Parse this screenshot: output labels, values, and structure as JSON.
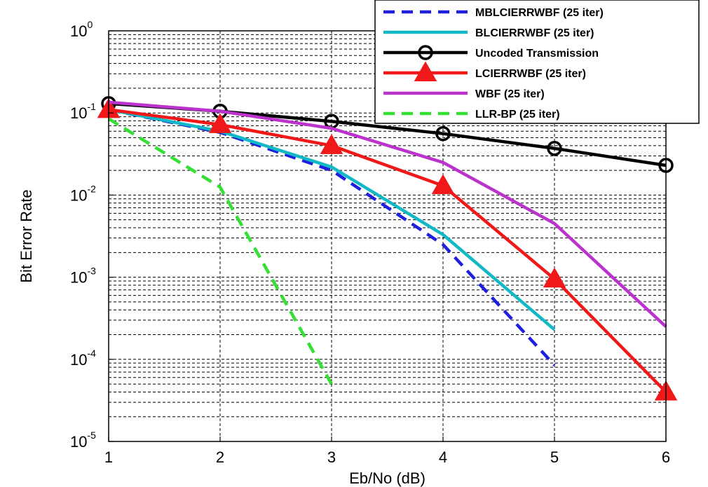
{
  "chart_data": {
    "type": "line",
    "title": "",
    "xlabel": "Eb/No (dB)",
    "ylabel": "Bit Error Rate",
    "x_scale": "linear",
    "y_scale": "log",
    "xlim": [
      1,
      6
    ],
    "ylim_exponents": [
      -5,
      0
    ],
    "x_ticks": [
      "1",
      "2",
      "3",
      "4",
      "5",
      "6"
    ],
    "y_ticks": [
      {
        "base": "10",
        "exp": "0",
        "value": 1
      },
      {
        "base": "10",
        "exp": "-1",
        "value": 0.1
      },
      {
        "base": "10",
        "exp": "-2",
        "value": 0.01
      },
      {
        "base": "10",
        "exp": "-3",
        "value": 0.001
      },
      {
        "base": "10",
        "exp": "-4",
        "value": 0.0001
      },
      {
        "base": "10",
        "exp": "-5",
        "value": 1e-05
      }
    ],
    "grid": true,
    "legend_position": "top-right",
    "series": [
      {
        "name": "MBLCIERRWBF (25 iter)",
        "color": "#1f1fe0",
        "dash": "dashed",
        "marker": "none",
        "x": [
          1,
          2,
          3,
          4,
          5
        ],
        "y": [
          0.11,
          0.058,
          0.02,
          0.0025,
          8.5e-05
        ]
      },
      {
        "name": "BLCIERRWBF (25 iter)",
        "color": "#11b9c6",
        "dash": "solid",
        "marker": "none",
        "x": [
          1,
          2,
          3,
          4,
          5
        ],
        "y": [
          0.11,
          0.06,
          0.022,
          0.0033,
          0.00023
        ]
      },
      {
        "name": "Uncoded Transmission",
        "color": "#000000",
        "dash": "solid",
        "marker": "circle",
        "x": [
          1,
          2,
          3,
          4,
          5,
          6
        ],
        "y": [
          0.13,
          0.105,
          0.079,
          0.056,
          0.037,
          0.023
        ]
      },
      {
        "name": "LCIERRWBF (25 iter)",
        "color": "#f01818",
        "dash": "solid",
        "marker": "triangle",
        "x": [
          1,
          2,
          3,
          4,
          5,
          6
        ],
        "y": [
          0.11,
          0.072,
          0.04,
          0.013,
          0.00095,
          4e-05
        ]
      },
      {
        "name": "WBF (25 iter)",
        "color": "#bb33cc",
        "dash": "solid",
        "marker": "none",
        "x": [
          1,
          2,
          3,
          4,
          5,
          6
        ],
        "y": [
          0.135,
          0.105,
          0.065,
          0.025,
          0.0045,
          0.00025
        ]
      },
      {
        "name": "LLR-BP (25 iter)",
        "color": "#33e033",
        "dash": "dashed",
        "marker": "none",
        "x": [
          1,
          2,
          3
        ],
        "y": [
          0.085,
          0.0125,
          5e-05
        ]
      }
    ]
  }
}
